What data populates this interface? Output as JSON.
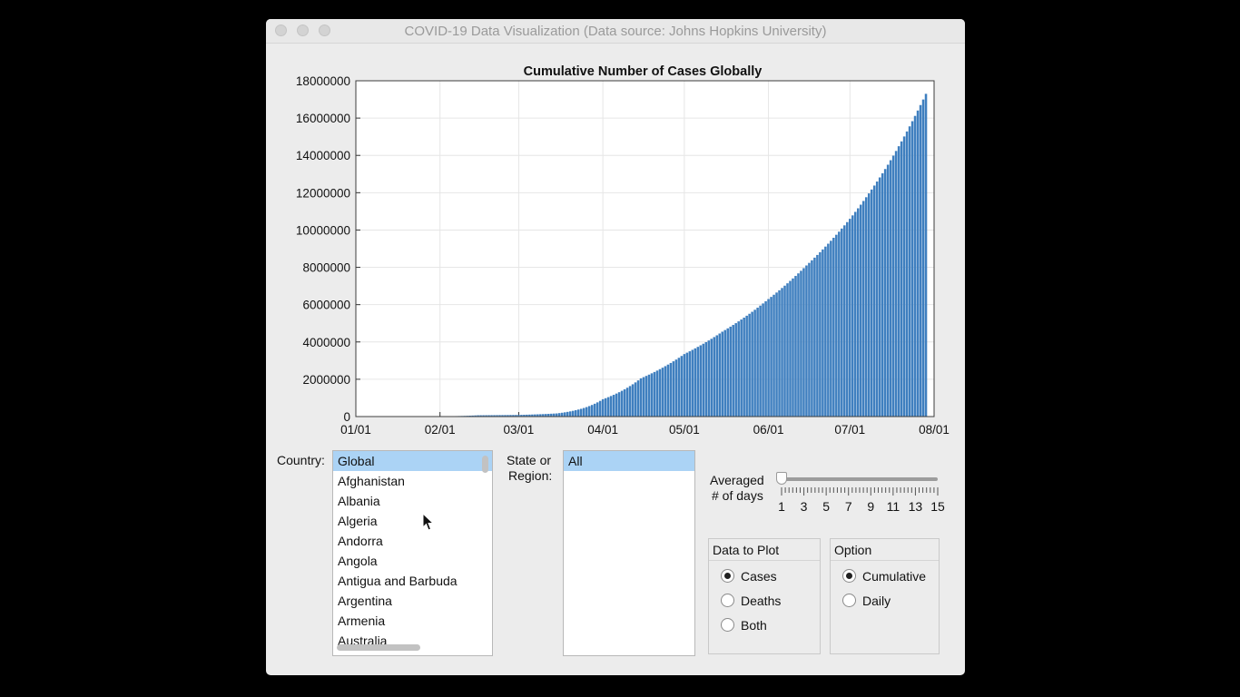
{
  "window": {
    "title": "COVID-19 Data Visualization (Data source: Johns Hopkins University)"
  },
  "chart_data": {
    "type": "bar",
    "title": "Cumulative Number of Cases Globally",
    "xlabel": "",
    "ylabel": "",
    "x_tick_labels": [
      "01/01",
      "02/01",
      "03/01",
      "04/01",
      "05/01",
      "06/01",
      "07/01",
      "08/01"
    ],
    "y_tick_labels": [
      "0",
      "2000000",
      "4000000",
      "6000000",
      "8000000",
      "10000000",
      "12000000",
      "14000000",
      "16000000",
      "18000000"
    ],
    "ylim": [
      0,
      18000000
    ],
    "x_start_date": "2020-01-22",
    "x_end_date": "2020-07-29",
    "anchors": [
      [
        "2020-01-22",
        555
      ],
      [
        "2020-02-01",
        12000
      ],
      [
        "2020-02-15",
        69000
      ],
      [
        "2020-03-01",
        88000
      ],
      [
        "2020-03-15",
        168000
      ],
      [
        "2020-04-01",
        930000
      ],
      [
        "2020-04-15",
        2050000
      ],
      [
        "2020-05-01",
        3350000
      ],
      [
        "2020-05-15",
        4550000
      ],
      [
        "2020-06-01",
        6300000
      ],
      [
        "2020-06-15",
        8100000
      ],
      [
        "2020-07-01",
        10600000
      ],
      [
        "2020-07-15",
        13500000
      ],
      [
        "2020-07-29",
        17300000
      ]
    ],
    "bar_color": "#3f7fbf",
    "grid": true
  },
  "country": {
    "label": "Country:",
    "items": [
      "Global",
      "Afghanistan",
      "Albania",
      "Algeria",
      "Andorra",
      "Angola",
      "Antigua and Barbuda",
      "Argentina",
      "Armenia",
      "Australia"
    ],
    "selected": "Global"
  },
  "state": {
    "label_line1": "State or",
    "label_line2": "Region:",
    "items": [
      "All"
    ],
    "selected": "All"
  },
  "averaging": {
    "label_line1": "Averaged",
    "label_line2": "# of days",
    "value": 1,
    "min": 1,
    "max": 15,
    "tick_labels": [
      "1",
      "3",
      "5",
      "7",
      "9",
      "11",
      "13",
      "15"
    ]
  },
  "data_to_plot": {
    "title": "Data to Plot",
    "options": [
      "Cases",
      "Deaths",
      "Both"
    ],
    "selected": "Cases"
  },
  "option": {
    "title": "Option",
    "options": [
      "Cumulative",
      "Daily"
    ],
    "selected": "Cumulative"
  },
  "icons": {
    "cursor": "mouse-pointer-icon",
    "close": "close-icon",
    "minimize": "minimize-icon",
    "zoom": "zoom-icon"
  }
}
